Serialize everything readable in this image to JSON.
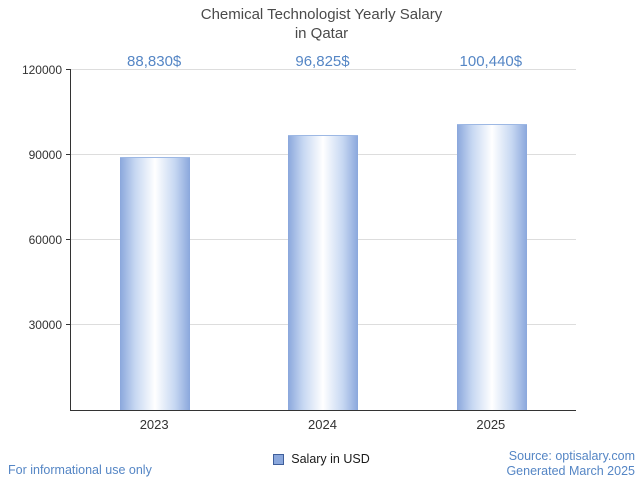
{
  "title": {
    "line1": "Chemical Technologist Yearly Salary",
    "line2": "in Qatar"
  },
  "chart_data": {
    "type": "bar",
    "title": "Chemical Technologist Yearly Salary in Qatar",
    "categories": [
      "2023",
      "2024",
      "2025"
    ],
    "series": [
      {
        "name": "Salary in USD",
        "values": [
          88830,
          96825,
          100440
        ]
      }
    ],
    "value_labels": [
      "88,830$",
      "96,825$",
      "100,440$"
    ],
    "xlabel": "",
    "ylabel": "",
    "ylim": [
      0,
      120000
    ],
    "yticks": [
      30000,
      60000,
      90000,
      120000
    ],
    "ytick_labels": [
      "30000",
      "60000",
      "90000",
      "120000"
    ],
    "grid": true,
    "legend_position": "bottom"
  },
  "legend": {
    "label": "Salary in USD"
  },
  "footer": {
    "disclaimer": "For informational use only",
    "source": "Source: optisalary.com",
    "generated": "Generated March 2025"
  },
  "colors": {
    "accent_blue": "#5586c5",
    "bar_edge": "#8aa7dc",
    "bar_mid": "#ffffff",
    "grid_line": "#dddddd",
    "axis_line": "#333333",
    "title_text": "#4a4a4a"
  }
}
